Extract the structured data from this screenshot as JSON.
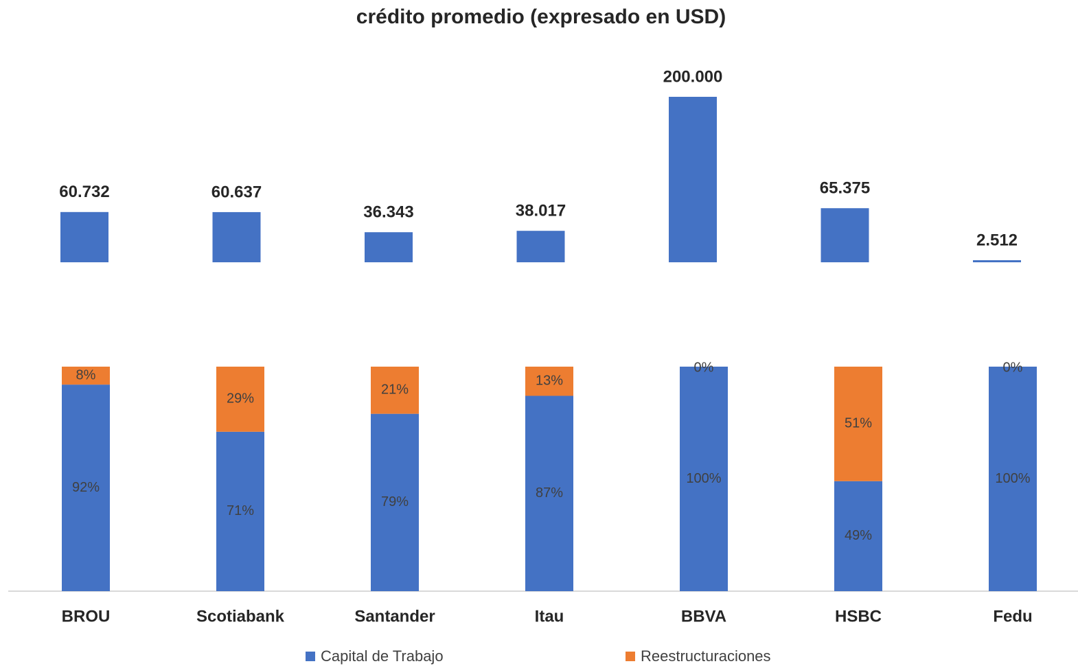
{
  "chart_data": [
    {
      "type": "bar",
      "title": "crédito promedio (expresado en USD)",
      "values": [
        60732,
        60637,
        36343,
        38017,
        200000,
        65375,
        2512
      ],
      "value_labels": [
        "60.732",
        "60.637",
        "36.343",
        "38.017",
        "200.000",
        "65.375",
        "2.512"
      ],
      "color": "#4472c4",
      "ylim": [
        0,
        200000
      ]
    },
    {
      "type": "stacked_bar",
      "categories": [
        "BROU",
        "Scotiabank",
        "Santander",
        "Itau",
        "BBVA",
        "HSBC",
        "Fedu"
      ],
      "series": [
        {
          "name": "Capital de Trabajo",
          "color": "#4472c4",
          "values": [
            92,
            71,
            79,
            87,
            100,
            49,
            100
          ],
          "value_labels": [
            "92%",
            "71%",
            "79%",
            "87%",
            "100%",
            "49%",
            "100%"
          ]
        },
        {
          "name": "Reestructuraciones",
          "color": "#ed7d31",
          "values": [
            8,
            29,
            21,
            13,
            0,
            51,
            0
          ],
          "value_labels": [
            "8%",
            "29%",
            "21%",
            "13%",
            "0%",
            "51%",
            "0%"
          ]
        }
      ],
      "ylim": [
        0,
        100
      ],
      "legend": "bottom"
    }
  ]
}
